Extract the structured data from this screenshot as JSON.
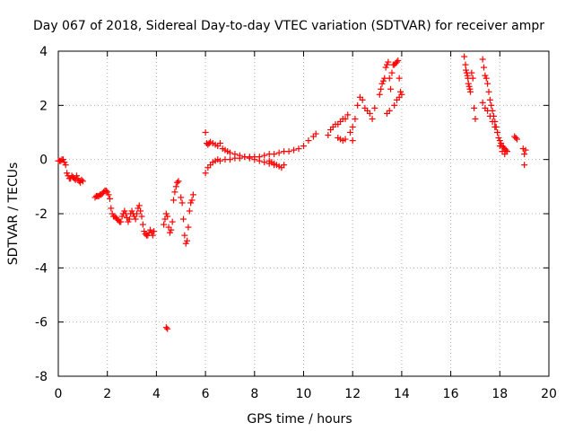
{
  "chart_data": {
    "type": "scatter",
    "title": "Day 067 of 2018, Sidereal Day-to-day VTEC variation (SDTVAR) for receiver ampr",
    "xlabel": "GPS time / hours",
    "ylabel": "SDTVAR / TECUs",
    "xlim": [
      0,
      20
    ],
    "ylim": [
      -8,
      4
    ],
    "xticks": [
      0,
      2,
      4,
      6,
      8,
      10,
      12,
      14,
      16,
      18,
      20
    ],
    "yticks": [
      -8,
      -6,
      -4,
      -2,
      0,
      2,
      4
    ],
    "grid": true,
    "marker": "+",
    "color": "#ff0000",
    "series": [
      {
        "name": "SDTVAR",
        "x": [
          0.0,
          0.05,
          0.1,
          0.15,
          0.2,
          0.25,
          0.3,
          0.35,
          0.4,
          0.45,
          0.5,
          0.55,
          0.6,
          0.65,
          0.7,
          0.75,
          0.8,
          0.85,
          0.9,
          0.95,
          1.0,
          1.5,
          1.55,
          1.6,
          1.65,
          1.7,
          1.75,
          1.8,
          1.85,
          1.9,
          1.95,
          2.0,
          2.05,
          2.1,
          2.15,
          2.2,
          2.25,
          2.3,
          2.35,
          2.4,
          2.45,
          2.5,
          2.55,
          2.6,
          2.65,
          2.7,
          2.75,
          2.8,
          2.85,
          2.9,
          2.95,
          3.0,
          3.05,
          3.1,
          3.15,
          3.2,
          3.25,
          3.3,
          3.35,
          3.4,
          3.45,
          3.5,
          3.55,
          3.6,
          3.65,
          3.7,
          3.75,
          3.8,
          3.85,
          3.9,
          4.3,
          4.35,
          4.4,
          4.45,
          4.5,
          4.55,
          4.6,
          4.65,
          4.7,
          4.75,
          4.8,
          4.85,
          4.9,
          4.4,
          4.45,
          5.0,
          5.05,
          5.1,
          5.15,
          5.2,
          5.25,
          5.3,
          5.35,
          5.4,
          5.45,
          5.5,
          6.0,
          6.05,
          6.1,
          6.15,
          6.2,
          6.3,
          6.4,
          6.5,
          6.6,
          6.7,
          6.8,
          6.9,
          7.0,
          7.2,
          7.4,
          7.6,
          7.8,
          8.0,
          8.2,
          8.4,
          8.6,
          8.8,
          6.0,
          6.1,
          6.2,
          6.3,
          6.4,
          6.5,
          6.6,
          6.8,
          7.0,
          7.2,
          7.4,
          7.6,
          7.8,
          8.0,
          8.2,
          8.4,
          8.6,
          8.8,
          9.0,
          9.2,
          9.4,
          9.6,
          9.8,
          10.0,
          10.2,
          10.4,
          10.5,
          8.6,
          8.7,
          8.8,
          8.9,
          9.0,
          9.1,
          9.2,
          11.0,
          11.1,
          11.2,
          11.3,
          11.4,
          11.5,
          11.6,
          11.7,
          11.8,
          11.9,
          12.0,
          12.1,
          12.2,
          12.3,
          12.4,
          12.5,
          12.6,
          12.7,
          12.8,
          12.9,
          11.4,
          11.5,
          11.6,
          11.7,
          12.0,
          13.1,
          13.15,
          13.2,
          13.25,
          13.3,
          13.35,
          13.4,
          13.45,
          13.5,
          13.55,
          13.6,
          13.65,
          13.7,
          13.75,
          13.8,
          13.85,
          13.9,
          13.95,
          14.0,
          13.4,
          13.5,
          13.7,
          13.8,
          13.9,
          16.55,
          16.6,
          16.62,
          16.65,
          16.68,
          16.7,
          16.72,
          16.75,
          16.78,
          16.8,
          16.85,
          16.9,
          16.95,
          17.0,
          17.3,
          17.35,
          17.4,
          17.45,
          17.5,
          17.55,
          17.6,
          17.65,
          17.7,
          17.75,
          17.8,
          17.85,
          17.9,
          17.95,
          18.0,
          18.05,
          18.1,
          18.15,
          18.2,
          18.25,
          18.3,
          17.3,
          17.4,
          17.5,
          17.6,
          17.7,
          17.8,
          17.9,
          18.0,
          18.1,
          18.2,
          18.6,
          18.65,
          18.7,
          18.95,
          19.0,
          19.05,
          19.0
        ],
        "y": [
          -0.05,
          -0.05,
          -0.05,
          0.0,
          0.0,
          -0.1,
          -0.2,
          -0.5,
          -0.6,
          -0.7,
          -0.7,
          -0.6,
          -0.65,
          -0.7,
          -0.75,
          -0.6,
          -0.7,
          -0.8,
          -0.85,
          -0.75,
          -0.8,
          -1.4,
          -1.35,
          -1.35,
          -1.35,
          -1.3,
          -1.3,
          -1.25,
          -1.2,
          -1.15,
          -1.15,
          -1.2,
          -1.3,
          -1.45,
          -1.8,
          -2.0,
          -2.1,
          -2.1,
          -2.15,
          -2.2,
          -2.25,
          -2.3,
          -2.3,
          -2.1,
          -2.0,
          -1.9,
          -2.0,
          -2.15,
          -2.3,
          -2.2,
          -2.0,
          -1.9,
          -2.0,
          -2.1,
          -2.2,
          -2.0,
          -1.8,
          -1.7,
          -1.9,
          -2.1,
          -2.4,
          -2.65,
          -2.75,
          -2.8,
          -2.8,
          -2.7,
          -2.6,
          -2.7,
          -2.8,
          -2.65,
          -2.4,
          -2.2,
          -2.0,
          -2.1,
          -2.5,
          -2.7,
          -2.6,
          -2.3,
          -1.5,
          -1.2,
          -1.0,
          -0.85,
          -0.8,
          -6.2,
          -6.25,
          -1.4,
          -1.6,
          -2.2,
          -2.8,
          -3.1,
          -3.0,
          -2.5,
          -1.9,
          -1.6,
          -1.5,
          -1.3,
          1.0,
          0.6,
          0.55,
          0.6,
          0.65,
          0.6,
          0.55,
          0.5,
          0.6,
          0.4,
          0.35,
          0.3,
          0.25,
          0.2,
          0.15,
          0.1,
          0.05,
          0.0,
          -0.05,
          -0.1,
          -0.15,
          -0.2,
          -0.5,
          -0.3,
          -0.2,
          -0.1,
          -0.05,
          0.0,
          -0.05,
          0.0,
          0.0,
          0.05,
          0.05,
          0.1,
          0.1,
          0.1,
          0.1,
          0.15,
          0.2,
          0.2,
          0.25,
          0.3,
          0.3,
          0.35,
          0.4,
          0.5,
          0.7,
          0.85,
          0.95,
          -0.05,
          -0.1,
          -0.15,
          -0.2,
          -0.25,
          -0.3,
          -0.2,
          0.9,
          1.1,
          1.2,
          1.3,
          1.3,
          1.4,
          1.5,
          1.5,
          1.65,
          1.0,
          1.2,
          1.5,
          2.0,
          2.3,
          2.2,
          1.9,
          1.8,
          1.7,
          1.5,
          1.9,
          0.8,
          0.75,
          0.7,
          0.75,
          0.7,
          2.4,
          2.6,
          2.8,
          2.9,
          3.0,
          3.4,
          3.5,
          3.6,
          3.0,
          2.6,
          3.2,
          3.5,
          3.5,
          3.55,
          3.6,
          3.65,
          3.0,
          2.5,
          2.4,
          1.7,
          1.8,
          2.0,
          2.2,
          2.3,
          3.8,
          3.5,
          3.3,
          3.2,
          3.1,
          3.0,
          2.8,
          2.7,
          2.6,
          2.5,
          3.2,
          3.0,
          1.9,
          1.5,
          3.7,
          3.4,
          3.1,
          3.0,
          2.8,
          2.5,
          2.2,
          2.0,
          1.8,
          1.6,
          1.4,
          1.2,
          1.0,
          0.8,
          0.7,
          0.6,
          0.5,
          0.45,
          0.4,
          0.35,
          0.3,
          2.1,
          1.9,
          1.8,
          1.6,
          1.4,
          1.2,
          1.0,
          0.5,
          0.3,
          0.2,
          0.85,
          0.8,
          0.75,
          0.4,
          0.2,
          0.35,
          -0.2
        ]
      }
    ]
  }
}
